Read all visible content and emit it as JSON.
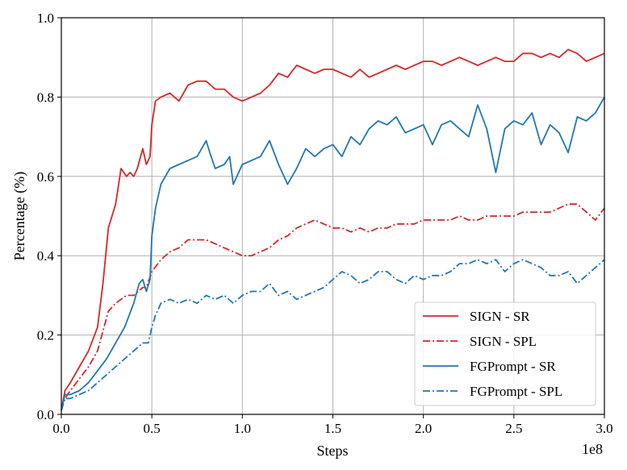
{
  "chart_data": {
    "type": "line",
    "title": "",
    "xlabel": "Steps",
    "ylabel": "Percentage (%)",
    "x_scale_note": "1e8",
    "xlim": [
      0.0,
      3.0
    ],
    "ylim": [
      0.0,
      1.0
    ],
    "xticks": [
      0.0,
      0.5,
      1.0,
      1.5,
      2.0,
      2.5,
      3.0
    ],
    "xtick_labels": [
      "0.0",
      "0.5",
      "1.0",
      "1.5",
      "2.0",
      "2.5",
      "3.0"
    ],
    "yticks": [
      0.0,
      0.2,
      0.4,
      0.6,
      0.8,
      1.0
    ],
    "ytick_labels": [
      "0.0",
      "0.2",
      "0.4",
      "0.6",
      "0.8",
      "1.0"
    ],
    "grid": true,
    "legend_position": "bottom-right",
    "series": [
      {
        "name": "SIGN - SR",
        "color": "#d62728",
        "style": "solid",
        "x": [
          0.0,
          0.02,
          0.05,
          0.1,
          0.15,
          0.2,
          0.23,
          0.26,
          0.3,
          0.33,
          0.36,
          0.38,
          0.4,
          0.42,
          0.45,
          0.47,
          0.49,
          0.5,
          0.52,
          0.55,
          0.6,
          0.65,
          0.7,
          0.75,
          0.8,
          0.85,
          0.9,
          0.95,
          1.0,
          1.05,
          1.1,
          1.15,
          1.2,
          1.25,
          1.3,
          1.35,
          1.4,
          1.45,
          1.5,
          1.55,
          1.6,
          1.65,
          1.7,
          1.75,
          1.8,
          1.85,
          1.9,
          1.95,
          2.0,
          2.05,
          2.1,
          2.15,
          2.2,
          2.25,
          2.3,
          2.35,
          2.4,
          2.45,
          2.5,
          2.55,
          2.6,
          2.65,
          2.7,
          2.75,
          2.8,
          2.85,
          2.9,
          2.95,
          3.0
        ],
        "values": [
          0.01,
          0.06,
          0.08,
          0.12,
          0.16,
          0.22,
          0.33,
          0.47,
          0.53,
          0.62,
          0.6,
          0.61,
          0.6,
          0.62,
          0.67,
          0.63,
          0.65,
          0.73,
          0.79,
          0.8,
          0.81,
          0.79,
          0.83,
          0.84,
          0.84,
          0.82,
          0.82,
          0.8,
          0.79,
          0.8,
          0.81,
          0.83,
          0.86,
          0.85,
          0.88,
          0.87,
          0.86,
          0.87,
          0.87,
          0.86,
          0.85,
          0.87,
          0.85,
          0.86,
          0.87,
          0.88,
          0.87,
          0.88,
          0.89,
          0.89,
          0.88,
          0.89,
          0.9,
          0.89,
          0.88,
          0.89,
          0.9,
          0.89,
          0.89,
          0.91,
          0.91,
          0.9,
          0.91,
          0.9,
          0.92,
          0.91,
          0.89,
          0.9,
          0.91
        ]
      },
      {
        "name": "SIGN - SPL",
        "color": "#d62728",
        "style": "dashdot",
        "x": [
          0.0,
          0.02,
          0.05,
          0.1,
          0.15,
          0.2,
          0.23,
          0.26,
          0.3,
          0.33,
          0.36,
          0.4,
          0.45,
          0.47,
          0.5,
          0.55,
          0.6,
          0.65,
          0.7,
          0.75,
          0.8,
          0.85,
          0.9,
          0.95,
          1.0,
          1.05,
          1.1,
          1.15,
          1.2,
          1.25,
          1.3,
          1.35,
          1.4,
          1.45,
          1.5,
          1.55,
          1.6,
          1.65,
          1.7,
          1.75,
          1.8,
          1.85,
          1.9,
          1.95,
          2.0,
          2.05,
          2.1,
          2.15,
          2.2,
          2.25,
          2.3,
          2.35,
          2.4,
          2.45,
          2.5,
          2.55,
          2.6,
          2.65,
          2.7,
          2.75,
          2.8,
          2.85,
          2.9,
          2.95,
          3.0
        ],
        "values": [
          0.01,
          0.04,
          0.06,
          0.09,
          0.12,
          0.16,
          0.21,
          0.26,
          0.28,
          0.29,
          0.3,
          0.3,
          0.32,
          0.32,
          0.36,
          0.39,
          0.41,
          0.42,
          0.44,
          0.44,
          0.44,
          0.43,
          0.42,
          0.41,
          0.4,
          0.4,
          0.41,
          0.42,
          0.44,
          0.45,
          0.47,
          0.48,
          0.49,
          0.48,
          0.47,
          0.47,
          0.46,
          0.47,
          0.46,
          0.47,
          0.47,
          0.48,
          0.48,
          0.48,
          0.49,
          0.49,
          0.49,
          0.49,
          0.5,
          0.49,
          0.49,
          0.5,
          0.5,
          0.5,
          0.5,
          0.51,
          0.51,
          0.51,
          0.51,
          0.52,
          0.53,
          0.53,
          0.51,
          0.49,
          0.52
        ]
      },
      {
        "name": "FGPrompt - SR",
        "color": "#1f77b4",
        "style": "solid",
        "x": [
          0.0,
          0.02,
          0.05,
          0.1,
          0.15,
          0.2,
          0.25,
          0.3,
          0.35,
          0.4,
          0.43,
          0.45,
          0.47,
          0.49,
          0.5,
          0.52,
          0.55,
          0.6,
          0.65,
          0.7,
          0.75,
          0.8,
          0.82,
          0.85,
          0.9,
          0.93,
          0.95,
          1.0,
          1.05,
          1.1,
          1.15,
          1.2,
          1.25,
          1.3,
          1.35,
          1.4,
          1.45,
          1.5,
          1.55,
          1.6,
          1.65,
          1.7,
          1.75,
          1.8,
          1.85,
          1.9,
          1.95,
          2.0,
          2.05,
          2.1,
          2.15,
          2.2,
          2.25,
          2.3,
          2.35,
          2.4,
          2.45,
          2.5,
          2.55,
          2.6,
          2.65,
          2.7,
          2.75,
          2.8,
          2.85,
          2.9,
          2.95,
          3.0
        ],
        "values": [
          0.01,
          0.05,
          0.05,
          0.06,
          0.08,
          0.11,
          0.14,
          0.18,
          0.22,
          0.28,
          0.33,
          0.34,
          0.31,
          0.34,
          0.45,
          0.52,
          0.58,
          0.62,
          0.63,
          0.64,
          0.65,
          0.69,
          0.66,
          0.62,
          0.63,
          0.65,
          0.58,
          0.63,
          0.64,
          0.65,
          0.69,
          0.63,
          0.58,
          0.62,
          0.67,
          0.65,
          0.67,
          0.68,
          0.65,
          0.7,
          0.68,
          0.72,
          0.74,
          0.73,
          0.75,
          0.71,
          0.72,
          0.73,
          0.68,
          0.73,
          0.74,
          0.72,
          0.7,
          0.78,
          0.72,
          0.61,
          0.72,
          0.74,
          0.73,
          0.76,
          0.68,
          0.73,
          0.71,
          0.66,
          0.75,
          0.74,
          0.76,
          0.8
        ]
      },
      {
        "name": "FGPrompt - SPL",
        "color": "#1f77b4",
        "style": "dashdot",
        "x": [
          0.0,
          0.02,
          0.05,
          0.1,
          0.15,
          0.2,
          0.25,
          0.3,
          0.35,
          0.4,
          0.45,
          0.48,
          0.5,
          0.52,
          0.55,
          0.6,
          0.65,
          0.7,
          0.75,
          0.8,
          0.85,
          0.9,
          0.95,
          1.0,
          1.05,
          1.1,
          1.15,
          1.2,
          1.25,
          1.3,
          1.35,
          1.4,
          1.45,
          1.5,
          1.55,
          1.6,
          1.65,
          1.7,
          1.75,
          1.8,
          1.85,
          1.9,
          1.95,
          2.0,
          2.05,
          2.1,
          2.15,
          2.2,
          2.25,
          2.3,
          2.35,
          2.4,
          2.45,
          2.5,
          2.55,
          2.6,
          2.65,
          2.7,
          2.75,
          2.8,
          2.85,
          2.9,
          2.95,
          3.0
        ],
        "values": [
          0.01,
          0.04,
          0.04,
          0.05,
          0.06,
          0.08,
          0.1,
          0.12,
          0.14,
          0.16,
          0.18,
          0.18,
          0.22,
          0.25,
          0.28,
          0.29,
          0.28,
          0.29,
          0.28,
          0.3,
          0.29,
          0.3,
          0.28,
          0.3,
          0.31,
          0.31,
          0.33,
          0.3,
          0.31,
          0.29,
          0.3,
          0.31,
          0.32,
          0.34,
          0.36,
          0.35,
          0.33,
          0.34,
          0.36,
          0.36,
          0.34,
          0.33,
          0.35,
          0.34,
          0.35,
          0.35,
          0.36,
          0.38,
          0.38,
          0.39,
          0.38,
          0.39,
          0.36,
          0.38,
          0.39,
          0.38,
          0.37,
          0.35,
          0.35,
          0.36,
          0.33,
          0.35,
          0.37,
          0.39
        ]
      }
    ]
  }
}
